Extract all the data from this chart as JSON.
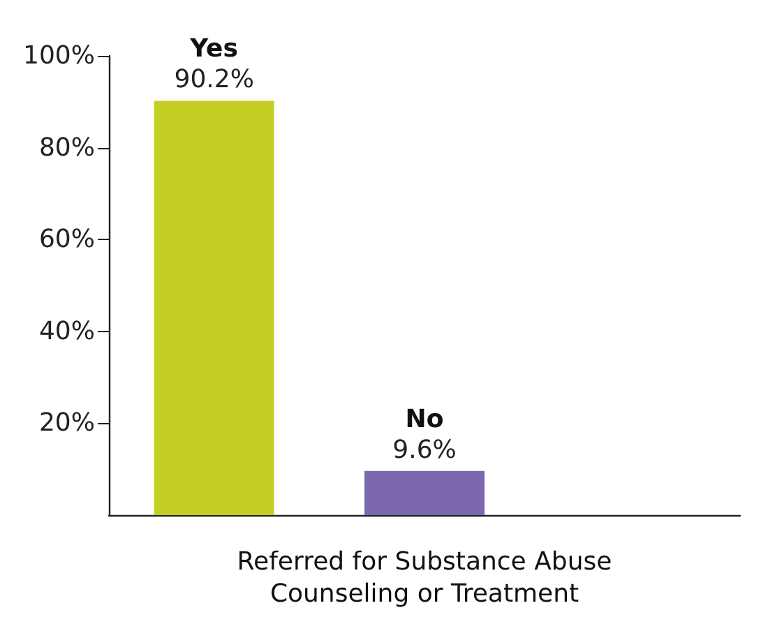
{
  "chart_data": {
    "type": "bar",
    "categories": [
      "Yes",
      "No"
    ],
    "values": [
      90.2,
      9.6
    ],
    "colors": [
      "#c3cf22",
      "#7b68ae"
    ],
    "value_labels": [
      "90.2%",
      "9.6%"
    ],
    "xlabel": "Referred for Substance Abuse Counseling or Treatment",
    "ylim": [
      0,
      100
    ],
    "yticks": [
      {
        "value": 20,
        "label": "20%"
      },
      {
        "value": 40,
        "label": "40%"
      },
      {
        "value": 60,
        "label": "60%"
      },
      {
        "value": 80,
        "label": "80%"
      },
      {
        "value": 100,
        "label": "100%"
      }
    ],
    "grid": false
  }
}
